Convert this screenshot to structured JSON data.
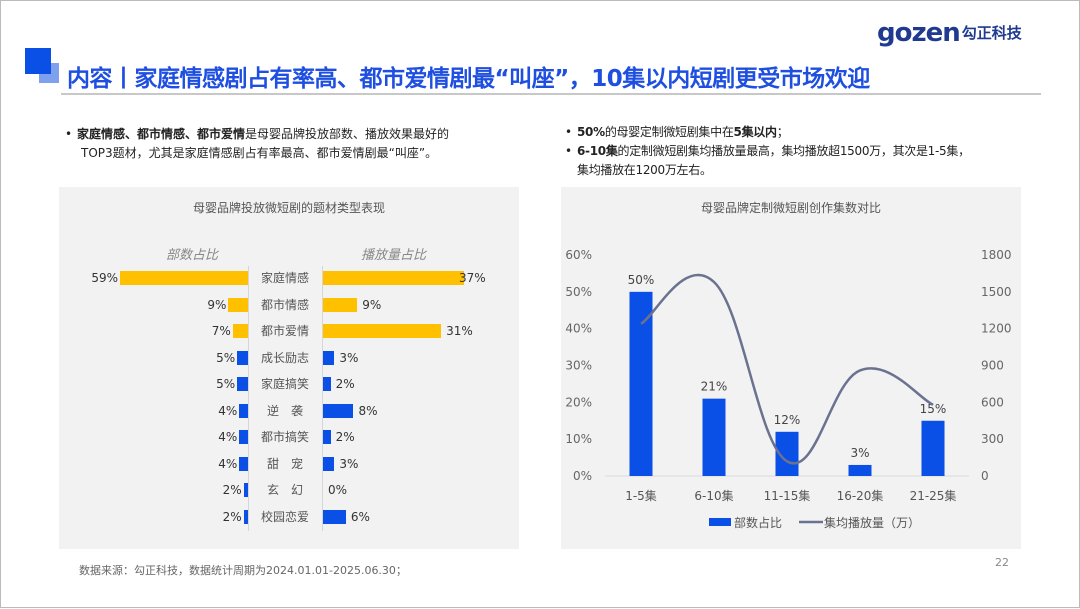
{
  "logo": {
    "text": "gozen",
    "cn": "勾正科技"
  },
  "title": "内容丨家庭情感剧占有率高、都市爱情剧最“叫座”，10集以内短剧更受市场欢迎",
  "left_bullet": {
    "bold": "家庭情感、都市情感、都市爱情",
    "text1": "是母婴品牌投放部数、播放效果最好的",
    "text2": "TOP3题材，尤其是家庭情感剧占有率最高、都市爱情剧最“叫座”。"
  },
  "right_bullets": [
    {
      "bold": "50%",
      "mid": "的母婴定制微短剧集中在",
      "bold2": "5集以内",
      "end": "；"
    },
    {
      "bold": "6-10集",
      "text1": "的定制微短剧集均播放量最高，集均播放超1500万，其次是1-5集，",
      "text2": "集均播放在1200万左右。"
    }
  ],
  "chart_data": [
    {
      "type": "bar",
      "title": "母婴品牌投放微短剧的题材类型表现",
      "orientation": "horizontal-butterfly",
      "left_header": "部数占比",
      "right_header": "播放量占比",
      "categories": [
        "家庭情感",
        "都市情感",
        "都市爱情",
        "成长励志",
        "家庭搞笑",
        "逆　袭",
        "都市搞笑",
        "甜　宠",
        "玄　幻",
        "校园恋爱"
      ],
      "series": [
        {
          "name": "部数占比",
          "values": [
            59,
            9,
            7,
            5,
            5,
            4,
            4,
            4,
            2,
            2
          ]
        },
        {
          "name": "播放量占比",
          "values": [
            37,
            9,
            31,
            3,
            2,
            8,
            2,
            3,
            0,
            6
          ]
        }
      ],
      "highlight_color": "#ffc000",
      "base_color": "#0a4fe6",
      "top_n_highlighted": 3
    },
    {
      "type": "bar+line",
      "title": "母婴品牌定制微短剧创作集数对比",
      "categories": [
        "1-5集",
        "6-10集",
        "11-15集",
        "16-20集",
        "21-25集"
      ],
      "series": [
        {
          "name": "部数占比",
          "type": "bar",
          "axis": "left",
          "values": [
            50,
            21,
            12,
            3,
            15
          ],
          "labels": [
            "50%",
            "21%",
            "12%",
            "3%",
            "15%"
          ],
          "color": "#0a4fe6"
        },
        {
          "name": "集均播放量（万）",
          "type": "line",
          "axis": "right",
          "values": [
            1240,
            1580,
            120,
            860,
            580
          ],
          "color": "#6b7290"
        }
      ],
      "y_left": {
        "ticks": [
          "0%",
          "10%",
          "20%",
          "30%",
          "40%",
          "50%",
          "60%"
        ],
        "range": [
          0,
          60
        ]
      },
      "y_right": {
        "ticks": [
          "0",
          "300",
          "600",
          "900",
          "1200",
          "1500",
          "1800"
        ],
        "range": [
          0,
          1800
        ]
      },
      "legend": "bottom"
    }
  ],
  "source": "数据来源：勾正科技，数据统计周期为2024.01.01-2025.06.30；",
  "page": "22"
}
